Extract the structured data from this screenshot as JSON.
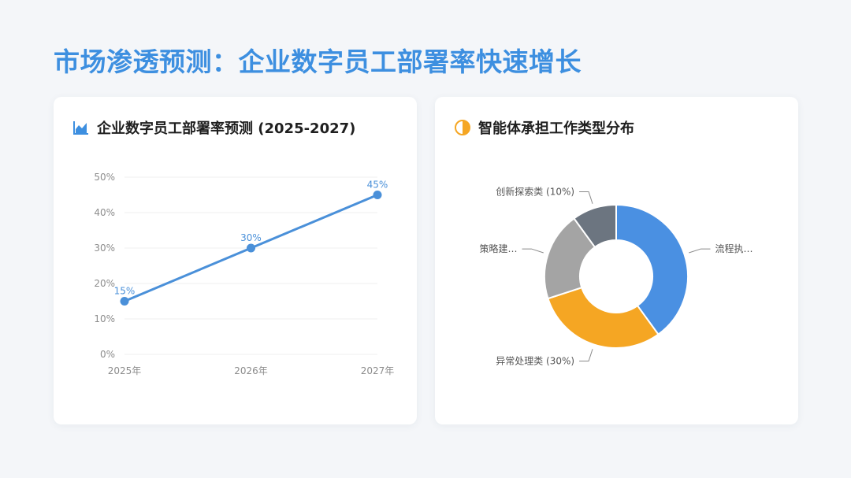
{
  "page": {
    "title": "市场渗透预测：企业数字员工部署率快速增长"
  },
  "left_card": {
    "title": "企业数字员工部署率预测 (2025-2027)",
    "icon": "area-chart-icon"
  },
  "right_card": {
    "title": "智能体承担工作类型分布",
    "icon": "half-circle-icon"
  },
  "colors": {
    "title": "#3d8fe0",
    "line": "#4a90d9",
    "slice_blue": "#4a90e2",
    "slice_orange": "#f5a623",
    "slice_gray": "#a4a4a4",
    "slice_dark": "#6c7580"
  },
  "chart_data": [
    {
      "type": "line",
      "title": "企业数字员工部署率预测 (2025-2027)",
      "x": [
        "2025年",
        "2026年",
        "2027年"
      ],
      "series": [
        {
          "values": [
            15,
            30,
            45
          ],
          "data_labels": [
            "15%",
            "30%",
            "45%"
          ]
        }
      ],
      "ylim": [
        0,
        50
      ],
      "yticks": [
        "0%",
        "10%",
        "20%",
        "30%",
        "40%",
        "50%"
      ],
      "grid": true
    },
    {
      "type": "pie",
      "title": "智能体承担工作类型分布",
      "slices": [
        {
          "label": "流程执…",
          "value": 40,
          "color": "#4a90e2"
        },
        {
          "label": "异常处理类 (30%)",
          "value": 30,
          "color": "#f5a623"
        },
        {
          "label": "策略建…",
          "value": 20,
          "color": "#a4a4a4"
        },
        {
          "label": "创新探索类 (10%)",
          "value": 10,
          "color": "#6c7580"
        }
      ],
      "donut": true
    }
  ]
}
